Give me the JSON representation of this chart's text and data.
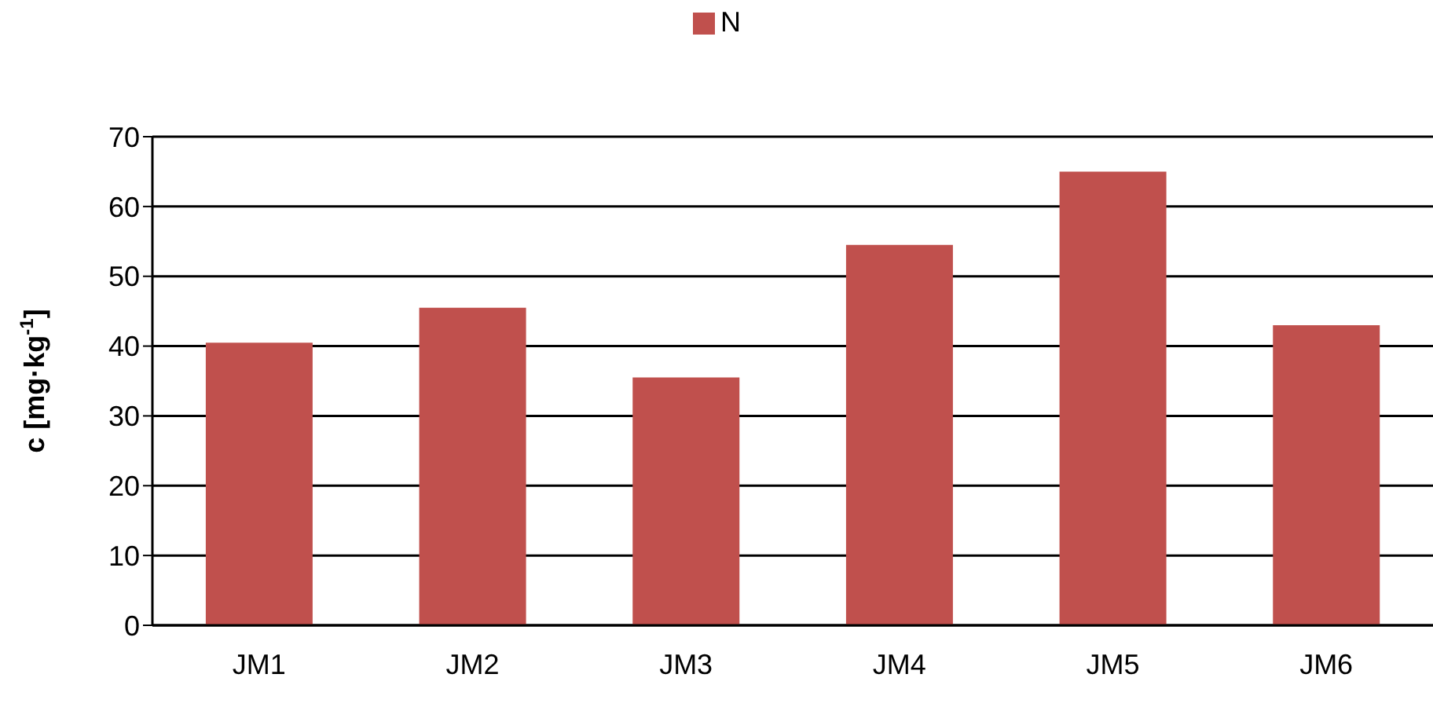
{
  "chart_data": {
    "type": "bar",
    "ylabel": "c [mg·kg$^{-1}$]",
    "categories": [
      "JM1",
      "JM2",
      "JM3",
      "JM4",
      "JM5",
      "JM6"
    ],
    "series": [
      {
        "name": "N",
        "color": "#c0504d",
        "values": [
          40.5,
          45.5,
          35.5,
          54.5,
          65,
          43
        ]
      }
    ],
    "ylim": [
      0,
      70
    ],
    "yticks": [
      0,
      10,
      20,
      30,
      40,
      50,
      60,
      70
    ],
    "grid": "y",
    "legend": "top"
  }
}
